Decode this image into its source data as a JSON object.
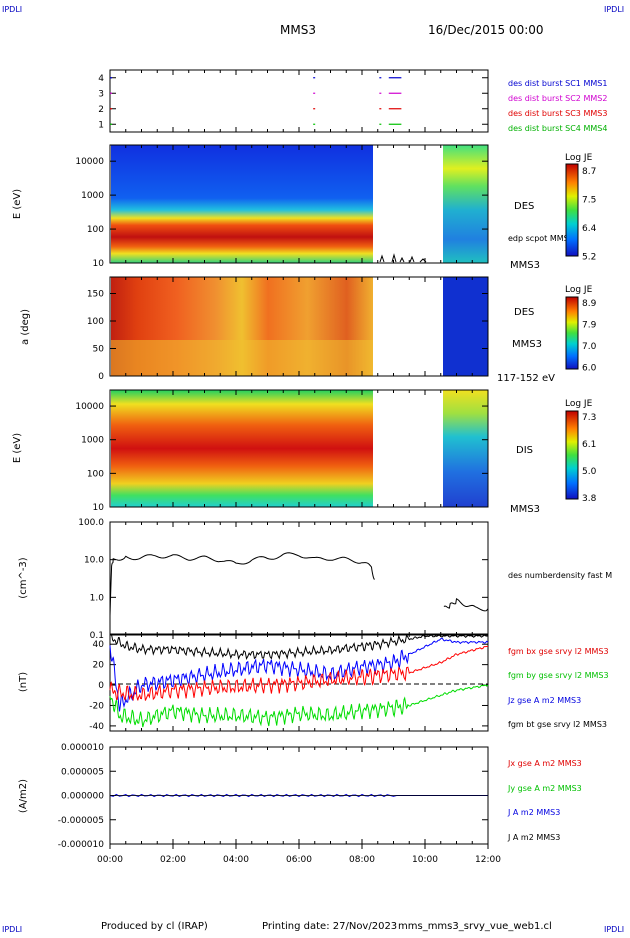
{
  "header": {
    "corner_tl": "IPDLI",
    "corner_tr": "IPDLI",
    "corner_bl": "IPDLI",
    "corner_br": "IPDLI",
    "mission": "MMS3",
    "date": "16/Dec/2015 00:00"
  },
  "footer": {
    "produced": "Produced by cl (IRAP)",
    "printing": "Printing date: 27/Nov/2023",
    "file": "mms_mms3_srvy_vue_web1.cl"
  },
  "colors": {
    "mms1": "#0000d0",
    "mms2": "#d000d0",
    "mms3": "#e00000",
    "mms4": "#00c000",
    "bx": "#ff0000",
    "by": "#00dd00",
    "bz": "#0000ff",
    "bt": "#000000"
  },
  "chart_data": [
    {
      "type": "scatter",
      "panel": "burst_availability",
      "yticks": [
        "1",
        "2",
        "3",
        "4"
      ],
      "series": [
        {
          "name": "des dist burst SC1 MMS1",
          "color": "mms1",
          "row": 4
        },
        {
          "name": "des dist burst SC2 MMS2",
          "color": "mms2",
          "row": 3
        },
        {
          "name": "des dist burst SC3 MMS3",
          "color": "mms3",
          "row": 2
        },
        {
          "name": "des dist burst SC4 MMS4",
          "color": "mms4",
          "row": 1
        }
      ],
      "intervals_hours": [
        [
          0.0,
          0.02
        ],
        [
          6.45,
          6.47
        ],
        [
          8.55,
          8.6
        ],
        [
          8.85,
          9.25
        ]
      ]
    },
    {
      "type": "heatmap",
      "panel": "des_energy",
      "ylabel": "E (eV)",
      "yscale": "log",
      "ylim": [
        10,
        30000
      ],
      "yticks": [
        "10",
        "100",
        "1000",
        "10000"
      ],
      "instrument": "DES",
      "overlay": "edp scpot MMS3",
      "spacecraft": "MMS3",
      "colorbar": {
        "title": "Log JE",
        "ticks": [
          "8.7",
          "7.5",
          "6.4",
          "5.2"
        ]
      },
      "data_gaps_hours": [
        [
          8.4,
          10.65
        ]
      ]
    },
    {
      "type": "heatmap",
      "panel": "des_pitch",
      "ylabel": "a (deg)",
      "ylim": [
        0,
        180
      ],
      "yticks": [
        "0",
        "50",
        "100",
        "150"
      ],
      "instrument": "DES",
      "spacecraft": "MMS3",
      "energy_range": "117-152 eV",
      "colorbar": {
        "title": "Log JE",
        "ticks": [
          "8.9",
          "7.9",
          "7.0",
          "6.0"
        ]
      },
      "data_gaps_hours": [
        [
          8.4,
          10.65
        ]
      ]
    },
    {
      "type": "heatmap",
      "panel": "dis_energy",
      "ylabel": "E (eV)",
      "yscale": "log",
      "ylim": [
        10,
        30000
      ],
      "yticks": [
        "10",
        "100",
        "1000",
        "10000"
      ],
      "instrument": "DIS",
      "spacecraft": "MMS3",
      "colorbar": {
        "title": "Log JE",
        "ticks": [
          "7.3",
          "6.1",
          "5.0",
          "3.8"
        ]
      },
      "data_gaps_hours": [
        [
          8.4,
          10.65
        ]
      ]
    },
    {
      "type": "line",
      "panel": "density",
      "ylabel": "(cm^-3)",
      "yscale": "log",
      "ylim": [
        0.1,
        100
      ],
      "yticks": [
        "100.0",
        "10.0",
        "1.0",
        "0.1"
      ],
      "series": [
        {
          "name": "des numberdensity fast M",
          "color": "bt",
          "x": [
            0,
            0.05,
            0.1,
            0.5,
            1.0,
            1.5,
            2.0,
            2.5,
            3.0,
            3.5,
            4.0,
            4.5,
            5.0,
            5.5,
            6.0,
            6.5,
            7.0,
            7.5,
            8.0,
            8.3,
            8.4,
            10.6,
            10.8,
            11.0,
            11.3,
            11.6,
            12.0
          ],
          "y": [
            0.35,
            6.0,
            10,
            12,
            11,
            13,
            12,
            11,
            11,
            10,
            7.5,
            10,
            11,
            13,
            14,
            10,
            11,
            10,
            9,
            6.0,
            3.0,
            0.5,
            0.6,
            0.8,
            0.65,
            0.5,
            0.5
          ]
        }
      ]
    },
    {
      "type": "line",
      "panel": "magnetic_field",
      "ylabel": "(nT)",
      "ylim": [
        -45,
        50
      ],
      "yticks": [
        "40",
        "20",
        "0",
        "-20",
        "-40"
      ],
      "series": [
        {
          "name": "fgm bx gse srvy l2 MMS3",
          "color": "bx",
          "x": [
            0,
            0.3,
            1,
            2,
            3,
            4,
            5,
            6,
            7,
            8,
            8.5,
            9.5,
            10.5,
            11,
            12
          ],
          "y": [
            -5,
            -8,
            -10,
            -5,
            -3,
            -2,
            0,
            2,
            5,
            8,
            10,
            12,
            22,
            30,
            38
          ]
        },
        {
          "name": "fgm by gse srvy l2 MMS3",
          "color": "by",
          "x": [
            0,
            0.3,
            1,
            2,
            3,
            4,
            5,
            6,
            7,
            8,
            9,
            9.5,
            10.5,
            11,
            12
          ],
          "y": [
            -10,
            -30,
            -35,
            -25,
            -30,
            -30,
            -32,
            -28,
            -30,
            -25,
            -22,
            -20,
            -10,
            -5,
            0
          ]
        },
        {
          "name": "fgm bz gse srvy l2 MMS3",
          "color": "bz",
          "x": [
            0,
            0.3,
            1,
            2,
            3,
            4,
            5,
            6,
            7,
            8,
            9,
            9.5,
            10.5,
            11,
            12
          ],
          "y": [
            40,
            -20,
            0,
            5,
            10,
            15,
            20,
            15,
            10,
            18,
            22,
            30,
            45,
            42,
            42
          ]
        },
        {
          "name": "J A m2 MMS3",
          "color": "bt",
          "x": [
            0,
            0.5,
            1,
            2,
            3,
            4,
            5,
            6,
            7,
            8,
            8.5,
            9.5,
            10,
            11,
            12
          ],
          "y": [
            47,
            38,
            35,
            35,
            32,
            30,
            30,
            32,
            34,
            38,
            40,
            45,
            48,
            48,
            48
          ]
        }
      ]
    },
    {
      "type": "line",
      "panel": "current",
      "ylabel": "(A/m2)",
      "ylim": [
        -0.0001,
        0.0001
      ],
      "yticks": [
        "0.000010",
        "0.000005",
        "0.000000",
        "-0.000005",
        "-0.000010"
      ],
      "series": [
        {
          "name": "Jx gse A m2 MMS3",
          "color": "bx"
        },
        {
          "name": "Jy gse A m2 MMS3",
          "color": "by"
        },
        {
          "name": "Jz gse A m2 MMS3",
          "color": "bz"
        },
        {
          "name": "fgm bt gse srvy l2 MMS3",
          "color": "bt"
        }
      ],
      "x": [
        0,
        12
      ],
      "y": [
        0,
        0
      ]
    }
  ],
  "xaxis": {
    "xlim": [
      0,
      12
    ],
    "ticks": [
      "00:00",
      "02:00",
      "04:00",
      "06:00",
      "08:00",
      "10:00",
      "12:00"
    ]
  }
}
